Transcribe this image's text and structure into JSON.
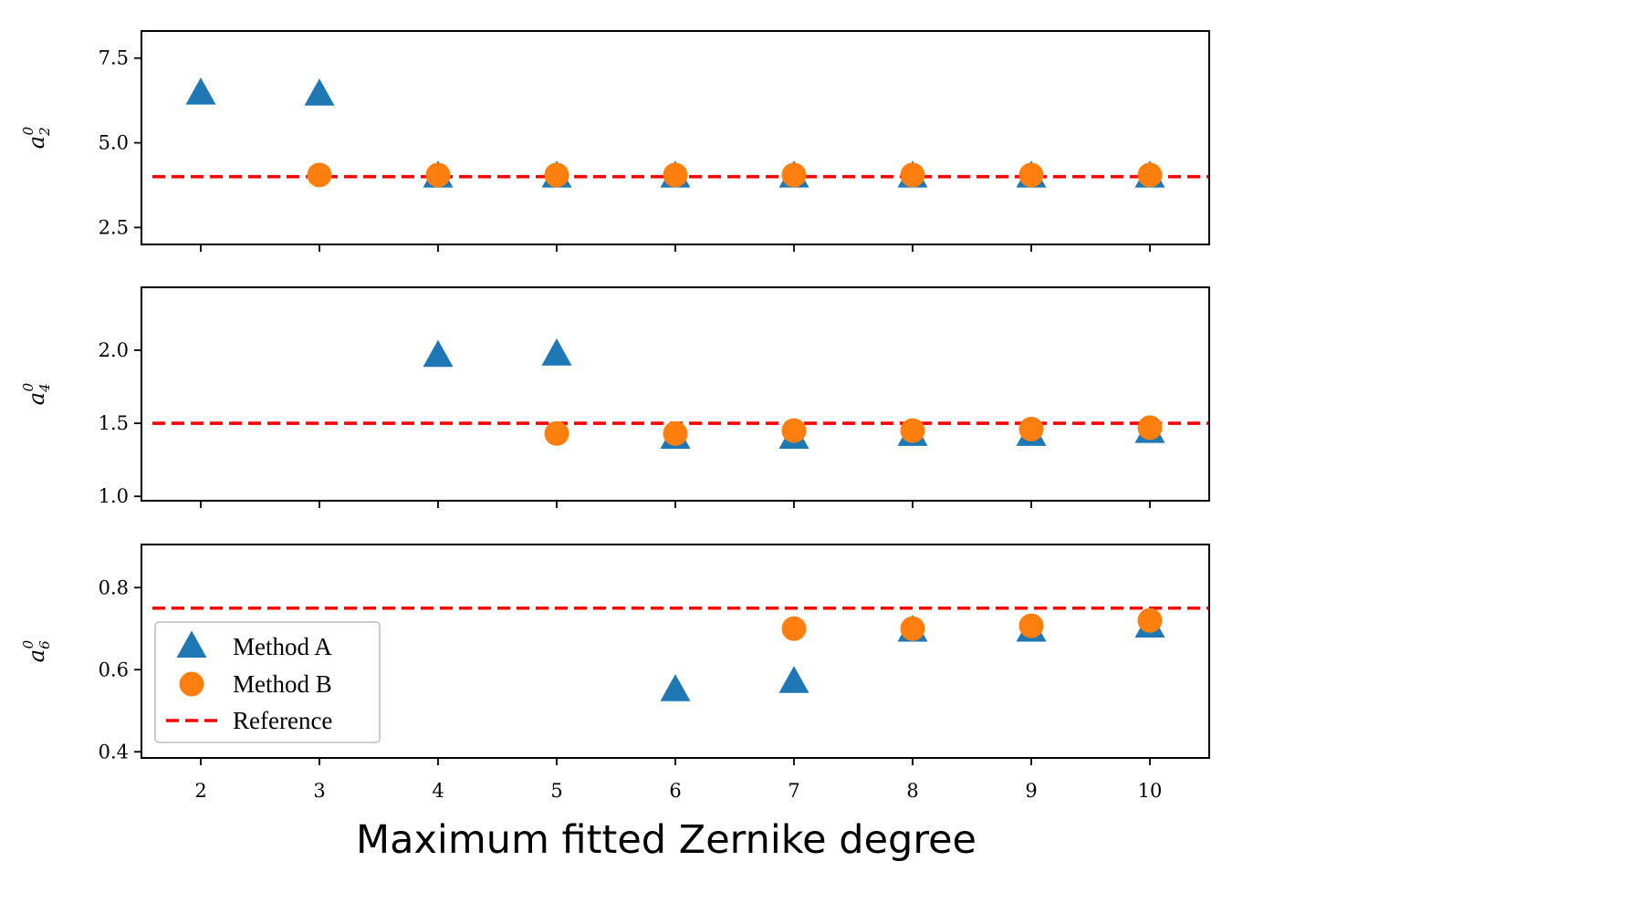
{
  "chart_data": {
    "type": "scatter",
    "xlabel": "Maximum fitted Zernike degree",
    "x_ticks": [
      2,
      3,
      4,
      5,
      6,
      7,
      8,
      9,
      10
    ],
    "xlim": [
      1.5,
      10.5
    ],
    "legend": {
      "placement": "lower-left of bottom panel",
      "entries": [
        {
          "label": "Method A",
          "marker": "triangle",
          "color": "#1f77b4"
        },
        {
          "label": "Method B",
          "marker": "circle",
          "color": "#ff7f0e"
        },
        {
          "label": "Reference",
          "marker": "dashed-line",
          "color": "#ff0000"
        }
      ]
    },
    "panels": [
      {
        "ylabel": {
          "base": "a",
          "sup": "0",
          "sub": "2"
        },
        "ylim": [
          2.0,
          8.3
        ],
        "yticks": [
          2.5,
          5.0,
          7.5
        ],
        "ytick_labels": [
          "2.5",
          "5.0",
          "7.5"
        ],
        "reference": 4.0,
        "series": [
          {
            "name": "Method A",
            "x": [
              2,
              3,
              4,
              5,
              6,
              7,
              8,
              9,
              10
            ],
            "y": [
              6.45,
              6.42,
              4.0,
              4.0,
              4.0,
              4.0,
              4.0,
              4.0,
              4.0
            ]
          },
          {
            "name": "Method B",
            "x": [
              3,
              4,
              5,
              6,
              7,
              8,
              9,
              10
            ],
            "y": [
              4.05,
              4.05,
              4.05,
              4.05,
              4.05,
              4.05,
              4.05,
              4.05
            ]
          }
        ]
      },
      {
        "ylabel": {
          "base": "a",
          "sup": "0",
          "sub": "4"
        },
        "ylim": [
          0.97,
          2.43
        ],
        "yticks": [
          1.0,
          1.5,
          2.0
        ],
        "ytick_labels": [
          "1.0",
          "1.5",
          "2.0"
        ],
        "reference": 1.5,
        "series": [
          {
            "name": "Method A",
            "x": [
              4,
              5,
              6,
              7,
              8,
              9,
              10
            ],
            "y": [
              1.96,
              1.97,
              1.4,
              1.4,
              1.42,
              1.42,
              1.44
            ]
          },
          {
            "name": "Method B",
            "x": [
              5,
              6,
              7,
              8,
              9,
              10
            ],
            "y": [
              1.43,
              1.43,
              1.45,
              1.45,
              1.46,
              1.47
            ]
          }
        ]
      },
      {
        "ylabel": {
          "base": "a",
          "sup": "0",
          "sub": "6"
        },
        "ylim": [
          0.385,
          0.905
        ],
        "yticks": [
          0.4,
          0.6,
          0.8
        ],
        "ytick_labels": [
          "0.4",
          "0.6",
          "0.8"
        ],
        "reference": 0.75,
        "series": [
          {
            "name": "Method A",
            "x": [
              6,
              7,
              8,
              9,
              10
            ],
            "y": [
              0.55,
              0.57,
              0.695,
              0.695,
              0.705
            ]
          },
          {
            "name": "Method B",
            "x": [
              7,
              8,
              9,
              10
            ],
            "y": [
              0.7,
              0.7,
              0.707,
              0.72
            ]
          }
        ]
      }
    ]
  }
}
